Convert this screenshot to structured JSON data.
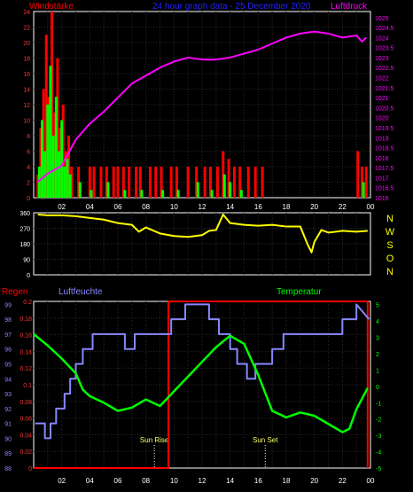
{
  "header": {
    "left_title": "Windstärke",
    "center_title": "24 hour graph data - 25 December 2020",
    "right_title": "Luftdruck",
    "colors": {
      "left": "#ff0000",
      "center": "#2222ff",
      "right": "#ff00ff"
    }
  },
  "xticks": [
    "02",
    "04",
    "06",
    "08",
    "10",
    "12",
    "14",
    "16",
    "18",
    "20",
    "22",
    "00"
  ],
  "chart_data": [
    {
      "type": "bar",
      "id": "wind-pressure",
      "left_axis": {
        "label": "Windstärke",
        "ticks": [
          0,
          2,
          4,
          6,
          8,
          10,
          12,
          14,
          16,
          18,
          20,
          22,
          24
        ],
        "ylim": [
          0,
          24
        ]
      },
      "right_axis": {
        "label": "Luftdruck",
        "ticks": [
          1016,
          1016.5,
          1017,
          1017.5,
          1018,
          1018.5,
          1019,
          1019.5,
          1020,
          1020.5,
          1021,
          1021.5,
          1022,
          1022.5,
          1023,
          1023.5,
          1024,
          1024.5,
          1025
        ],
        "ylim": [
          1016,
          1025.3
        ]
      },
      "series": [
        {
          "name": "Windstärke",
          "kind": "bar",
          "color": "#ff0000",
          "values": [
            [
              0.3,
              3
            ],
            [
              0.5,
              9
            ],
            [
              0.7,
              14
            ],
            [
              0.9,
              21
            ],
            [
              1.1,
              13
            ],
            [
              1.3,
              24
            ],
            [
              1.5,
              11
            ],
            [
              1.7,
              18
            ],
            [
              1.9,
              9
            ],
            [
              2.1,
              12
            ],
            [
              2.3,
              6
            ],
            [
              2.5,
              8
            ],
            [
              2.7,
              4
            ],
            [
              3.2,
              4
            ],
            [
              4.0,
              4
            ],
            [
              4.3,
              4
            ],
            [
              4.8,
              4
            ],
            [
              5.2,
              4
            ],
            [
              5.7,
              4
            ],
            [
              6.0,
              4
            ],
            [
              6.4,
              4
            ],
            [
              6.8,
              4
            ],
            [
              7.3,
              4
            ],
            [
              7.6,
              4
            ],
            [
              8.3,
              4
            ],
            [
              8.7,
              4
            ],
            [
              9.1,
              4
            ],
            [
              9.8,
              4
            ],
            [
              10.2,
              4
            ],
            [
              11.0,
              4
            ],
            [
              11.6,
              4
            ],
            [
              12.2,
              4
            ],
            [
              12.6,
              4
            ],
            [
              13.1,
              4
            ],
            [
              13.5,
              6
            ],
            [
              13.9,
              5
            ],
            [
              14.3,
              4
            ],
            [
              14.7,
              4
            ],
            [
              15.3,
              4
            ],
            [
              15.8,
              4
            ],
            [
              16.3,
              4
            ],
            [
              23.1,
              6
            ],
            [
              23.4,
              4
            ],
            [
              23.7,
              4
            ]
          ]
        },
        {
          "name": "Windböen",
          "kind": "bar",
          "color": "#00ff00",
          "values": [
            [
              0.4,
              4
            ],
            [
              0.6,
              10
            ],
            [
              0.8,
              6
            ],
            [
              1.0,
              12
            ],
            [
              1.2,
              17
            ],
            [
              1.4,
              8
            ],
            [
              1.6,
              13
            ],
            [
              1.8,
              6
            ],
            [
              2.0,
              10
            ],
            [
              2.2,
              4
            ],
            [
              2.4,
              5
            ],
            [
              2.6,
              3
            ],
            [
              3.3,
              2
            ],
            [
              4.1,
              1
            ],
            [
              5.3,
              2
            ],
            [
              6.5,
              1
            ],
            [
              7.7,
              1
            ],
            [
              9.2,
              1
            ],
            [
              10.3,
              1
            ],
            [
              11.7,
              2
            ],
            [
              12.7,
              1
            ],
            [
              13.6,
              3
            ],
            [
              14.0,
              2
            ],
            [
              14.8,
              1
            ],
            [
              23.5,
              2
            ]
          ]
        },
        {
          "name": "Luftdruck",
          "kind": "line",
          "color": "#ff00ff",
          "x": [
            0.3,
            1,
            2,
            3,
            4,
            5,
            6,
            7,
            8,
            9,
            10,
            11,
            12,
            13,
            14,
            15,
            16,
            17,
            18,
            19,
            20,
            21,
            22,
            23,
            23.4,
            23.7
          ],
          "values": [
            1016.8,
            1017.2,
            1017.6,
            1018.9,
            1019.7,
            1020.3,
            1021.0,
            1021.7,
            1022.1,
            1022.5,
            1022.8,
            1023.0,
            1022.9,
            1022.9,
            1023.0,
            1023.2,
            1023.4,
            1023.7,
            1024.0,
            1024.2,
            1024.3,
            1024.2,
            1024.0,
            1024.1,
            1023.8,
            1024.0
          ]
        }
      ]
    },
    {
      "type": "line",
      "id": "wind-direction",
      "left_axis": {
        "ticks": [
          0,
          90,
          180,
          270,
          360
        ],
        "ylim": [
          0,
          360
        ]
      },
      "compass_labels": [
        "N",
        "W",
        "S",
        "O",
        "N"
      ],
      "series": [
        {
          "name": "Windrichtung",
          "color": "#ffff00",
          "x": [
            0.3,
            1,
            2,
            3,
            4,
            5,
            6,
            7,
            7.5,
            8,
            9,
            10,
            11,
            12,
            12.5,
            13,
            13.5,
            14,
            15,
            16,
            17,
            18,
            19,
            19.5,
            19.8,
            20,
            20.5,
            21,
            22,
            23,
            23.8
          ],
          "values": [
            350,
            345,
            345,
            340,
            330,
            320,
            300,
            290,
            250,
            275,
            240,
            225,
            220,
            230,
            255,
            260,
            350,
            300,
            290,
            285,
            290,
            280,
            280,
            180,
            130,
            190,
            260,
            245,
            255,
            250,
            255
          ]
        }
      ]
    },
    {
      "type": "line",
      "id": "rain-humidity-temperature",
      "titles": {
        "left": "Regen",
        "center": "Luftfeuchte",
        "right": "Temperatur"
      },
      "axis_humidity": {
        "ticks": [
          88,
          89,
          90,
          91,
          92,
          93,
          94,
          95,
          96,
          97,
          98,
          99
        ],
        "ylim": [
          88,
          99.2
        ]
      },
      "axis_rain": {
        "ticks": [
          0,
          0.02,
          0.04,
          0.06,
          0.08,
          0.1,
          0.12,
          0.14,
          0.16,
          0.18,
          0.2
        ],
        "ylim": [
          0,
          0.2
        ]
      },
      "axis_temperature": {
        "ticks": [
          -5,
          -4,
          -3,
          -2,
          -1,
          0,
          1,
          2,
          3,
          4,
          5
        ],
        "ylim": [
          -5,
          5.2
        ]
      },
      "annotations": [
        {
          "label": "Sun Rise",
          "x": 8.6
        },
        {
          "label": "Sun Set",
          "x": 16.5
        }
      ],
      "series": [
        {
          "name": "Regen",
          "color": "#ff0000",
          "x": [
            0,
            9.6,
            9.6,
            23.8,
            23.8
          ],
          "values": [
            0,
            0,
            0.2,
            0.2,
            0
          ]
        },
        {
          "name": "Luftfeuchte",
          "color": "#8888ff",
          "x": [
            0.1,
            0.8,
            0.8,
            1.2,
            1.2,
            1.6,
            1.6,
            2.2,
            2.2,
            2.6,
            2.6,
            3.0,
            3.0,
            3.5,
            3.5,
            4.2,
            4.2,
            5.0,
            5.0,
            6.5,
            6.5,
            7.2,
            7.2,
            8.6,
            8.6,
            9.8,
            9.8,
            10.8,
            10.8,
            12.5,
            12.5,
            13.2,
            13.2,
            14.0,
            14.0,
            14.5,
            14.5,
            15.2,
            15.2,
            15.8,
            15.8,
            17.0,
            17.0,
            17.8,
            17.8,
            18.6,
            18.6,
            20.8,
            20.8,
            22.0,
            22.0,
            23.0,
            23.0,
            23.9
          ],
          "values": [
            91,
            91,
            90,
            90,
            91,
            91,
            92,
            92,
            93,
            93,
            94,
            94,
            95,
            95,
            96,
            96,
            97,
            97,
            97,
            97,
            96,
            96,
            97,
            97,
            97,
            97,
            98,
            98,
            99,
            99,
            98,
            98,
            97,
            97,
            96,
            96,
            95,
            95,
            94,
            94,
            95,
            95,
            96,
            96,
            97,
            97,
            97,
            97,
            97,
            97,
            98,
            98,
            99,
            98
          ]
        },
        {
          "name": "Temperatur",
          "color": "#00ff00",
          "x": [
            0,
            1,
            2,
            3,
            3.5,
            4,
            5,
            6,
            7,
            8,
            9,
            10,
            11,
            12,
            13,
            14,
            15,
            16,
            17,
            18,
            19,
            20,
            21,
            22,
            22.5,
            23,
            23.8
          ],
          "values": [
            3.2,
            2.5,
            1.7,
            0.8,
            -0.2,
            -0.6,
            -1.0,
            -1.5,
            -1.3,
            -0.8,
            -1.2,
            -0.3,
            0.6,
            1.5,
            2.4,
            3.1,
            2.6,
            0.7,
            -1.5,
            -1.9,
            -1.6,
            -1.8,
            -2.3,
            -2.8,
            -2.6,
            -1.4,
            -0.1
          ]
        }
      ]
    }
  ]
}
